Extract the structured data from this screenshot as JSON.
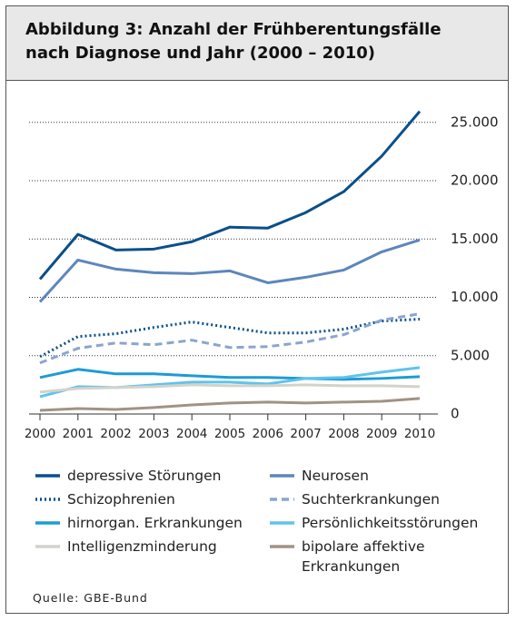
{
  "chart_data": {
    "type": "line",
    "title": "Abbildung 3: Anzahl der Frühberentungsfälle nach Diagnose und Jahr (2000 – 2010)",
    "source": "Quelle: GBE-Bund",
    "categories": [
      "2000",
      "2001",
      "2002",
      "2003",
      "2004",
      "2005",
      "2006",
      "2007",
      "2008",
      "2009",
      "2010"
    ],
    "ylim": [
      0,
      26500
    ],
    "yticks": [
      0,
      {
        "value": 5000,
        "label": "5.000"
      },
      {
        "value": 10000,
        "label": "10.000"
      },
      {
        "value": 15000,
        "label": "15.000"
      },
      {
        "value": 20000,
        "label": "20.000"
      },
      {
        "value": 25000,
        "label": "25.000"
      }
    ],
    "grid": true,
    "series": [
      {
        "name": "depressive Störungen",
        "color": "#0a4f8a",
        "dash": "solid",
        "values": [
          11560,
          15400,
          14060,
          14140,
          14770,
          16020,
          15940,
          17270,
          19060,
          22110,
          25940
        ]
      },
      {
        "name": "Neurosen",
        "color": "#5d86bb",
        "dash": "solid",
        "values": [
          9610,
          13200,
          12420,
          12110,
          12030,
          12270,
          11250,
          11720,
          12340,
          13900,
          14920
        ]
      },
      {
        "name": "Schizophrenien",
        "color": "#0a4f8a",
        "dash": "dotted",
        "values": [
          4920,
          6640,
          6880,
          7420,
          7890,
          7420,
          6950,
          6950,
          7270,
          7970,
          8130
        ]
      },
      {
        "name": "Suchterkrankungen",
        "color": "#8ba5cf",
        "dash": "dashed",
        "values": [
          4380,
          5630,
          6090,
          5940,
          6330,
          5700,
          5780,
          6170,
          6800,
          8050,
          8590
        ]
      },
      {
        "name": "hirnorgan. Erkrankungen",
        "color": "#1d9bd7",
        "dash": "solid",
        "values": [
          3130,
          3830,
          3440,
          3440,
          3280,
          3130,
          3130,
          3050,
          2970,
          3050,
          3200
        ]
      },
      {
        "name": "Persönlichkeitsstörungen",
        "color": "#5fc3ec",
        "dash": "solid",
        "values": [
          1480,
          2340,
          2270,
          2500,
          2730,
          2730,
          2580,
          3050,
          3130,
          3590,
          3980
        ]
      },
      {
        "name": "Intelligenzminderung",
        "color": "#d3d3cc",
        "dash": "solid",
        "values": [
          1880,
          2190,
          2270,
          2340,
          2500,
          2420,
          2420,
          2500,
          2420,
          2420,
          2340
        ]
      },
      {
        "name": "bipolare affektive Erkrankungen",
        "color": "#a09385",
        "dash": "solid",
        "values": [
          310,
          470,
          390,
          550,
          780,
          940,
          1020,
          940,
          1020,
          1090,
          1330
        ]
      }
    ]
  }
}
